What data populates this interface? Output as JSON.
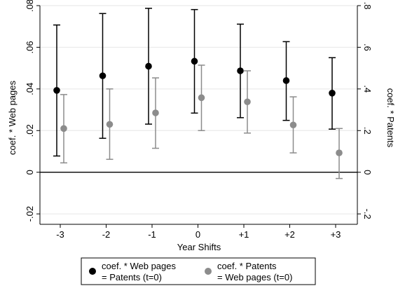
{
  "chart_data": {
    "type": "scatter",
    "xlabel": "Year Shifts",
    "ylabel_left": "coef. * Web pages",
    "ylabel_right": "coef. * Patents",
    "categories": [
      "-3",
      "-2",
      "-1",
      "0",
      "+1",
      "+2",
      "+3"
    ],
    "ylim_left": [
      -0.025,
      0.08
    ],
    "ylim_right": [
      -0.25,
      0.8
    ],
    "yticks_left": [
      {
        "value": -0.02,
        "label": "-.02"
      },
      {
        "value": 0,
        "label": "0"
      },
      {
        "value": 0.02,
        "label": ".02"
      },
      {
        "value": 0.04,
        "label": ".04"
      },
      {
        "value": 0.06,
        "label": ".06"
      },
      {
        "value": 0.08,
        "label": ".08"
      }
    ],
    "yticks_right": [
      {
        "value": -0.2,
        "label": "-.2"
      },
      {
        "value": 0,
        "label": "0"
      },
      {
        "value": 0.2,
        "label": ".2"
      },
      {
        "value": 0.4,
        "label": ".4"
      },
      {
        "value": 0.6,
        "label": ".6"
      },
      {
        "value": 0.8,
        "label": ".8"
      }
    ],
    "grid": true,
    "zero_line": true,
    "legend_position": "bottom",
    "series": [
      {
        "name": "coef. * Web pages\n= Patents (t=0)",
        "legend_line1": "coef. * Web pages",
        "legend_line2": "= Patents (t=0)",
        "axis": "left",
        "color": "#000000",
        "values": [
          0.0393,
          0.0463,
          0.0509,
          0.0533,
          0.0487,
          0.044,
          0.038
        ],
        "ci_low": [
          0.0078,
          0.0163,
          0.0231,
          0.0284,
          0.0262,
          0.0249,
          0.0207
        ],
        "ci_high": [
          0.0707,
          0.0762,
          0.0787,
          0.0781,
          0.0711,
          0.0627,
          0.055
        ]
      },
      {
        "name": "coef. * Patents\n= Web pages (t=0)",
        "legend_line1": "coef. * Patents",
        "legend_line2": "= Web pages (t=0)",
        "axis": "right",
        "color": "#8c8c8c",
        "values": [
          0.21,
          0.23,
          0.285,
          0.358,
          0.338,
          0.227,
          0.093
        ],
        "ci_low": [
          0.045,
          0.062,
          0.115,
          0.2,
          0.188,
          0.093,
          -0.03
        ],
        "ci_high": [
          0.373,
          0.4,
          0.453,
          0.514,
          0.487,
          0.362,
          0.21
        ]
      }
    ]
  }
}
